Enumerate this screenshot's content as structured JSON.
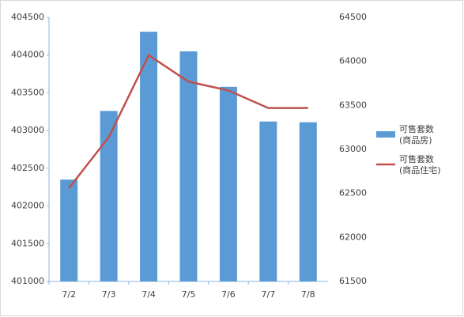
{
  "chart_data": {
    "type": "combo",
    "categories": [
      "7/2",
      "7/3",
      "7/4",
      "7/5",
      "7/6",
      "7/7",
      "7/8"
    ],
    "series": [
      {
        "name": "可售套数(商品房)",
        "type": "bar",
        "color": "#5b9bd5",
        "values": [
          402350,
          403260,
          404310,
          404050,
          403580,
          403120,
          403110
        ]
      },
      {
        "name": "可售套数(商品住宅)",
        "type": "line",
        "axis": "y2",
        "color": "#c0504d",
        "values": [
          62560,
          63140,
          64070,
          63770,
          63670,
          63470,
          63470
        ]
      }
    ],
    "ylim": [
      401000,
      404500
    ],
    "yticks": [
      401000,
      401500,
      402000,
      402500,
      403000,
      403500,
      404000,
      404500
    ],
    "y2lim": [
      61500,
      64500
    ],
    "y2ticks": [
      61500,
      62000,
      62500,
      63000,
      63500,
      64000,
      64500
    ],
    "grid": false,
    "legend": "right"
  }
}
